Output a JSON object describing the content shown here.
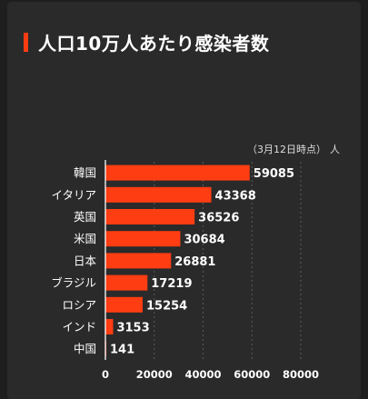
{
  "title": "人口10万人あたり感染者数",
  "note": "（3月12日時点）",
  "unit": "人",
  "colors": {
    "bar": "#ff3d12",
    "background": "#1e1e1e",
    "panel": "#2a2a2a",
    "text": "#ffffff",
    "grid": "#5a5a5a"
  },
  "chart_data": {
    "type": "bar",
    "orientation": "horizontal",
    "title": "人口10万人あたり感染者数",
    "categories": [
      "韓国",
      "イタリア",
      "英国",
      "米国",
      "日本",
      "ブラジル",
      "ロシア",
      "インド",
      "中国"
    ],
    "values": [
      59085,
      43368,
      36526,
      30684,
      26881,
      17219,
      15254,
      3153,
      141
    ],
    "xlim": [
      0,
      80000
    ],
    "xticks": [
      0,
      20000,
      40000,
      60000,
      80000
    ],
    "grid": "vertical dashed",
    "data_labels": true
  }
}
